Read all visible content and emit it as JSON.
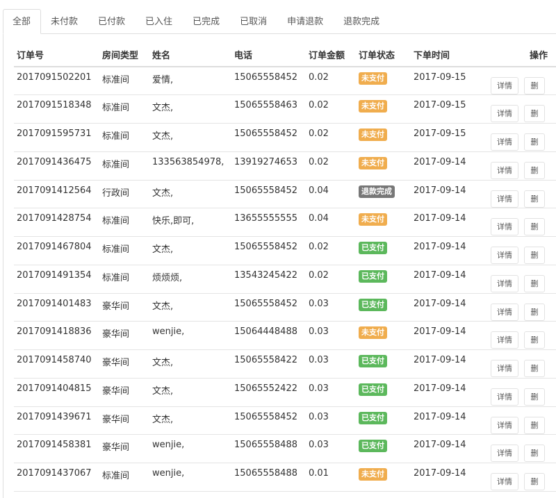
{
  "tabs": [
    "全部",
    "未付款",
    "已付款",
    "已入住",
    "已完成",
    "已取消",
    "申请退款",
    "退款完成"
  ],
  "active_tab": "全部",
  "headers": [
    "订单号",
    "房间类型",
    "姓名",
    "电话",
    "订单金额",
    "订单状态",
    "下单时间",
    "操作"
  ],
  "status_colors": {
    "未支付": "#f0ad4e",
    "已支付": "#5cb85c",
    "退款完成": "#777777"
  },
  "detail_label": "详情",
  "delete_label": "删",
  "rows": [
    {
      "id": "2017091502201",
      "room": "标准间",
      "name": "爱情,",
      "phone": "15065558452",
      "amount": "0.02",
      "status": "未支付",
      "date": "2017-09-15"
    },
    {
      "id": "2017091518348",
      "room": "标准间",
      "name": "文杰,",
      "phone": "15065558463",
      "amount": "0.02",
      "status": "未支付",
      "date": "2017-09-15"
    },
    {
      "id": "2017091595731",
      "room": "标准间",
      "name": "文杰,",
      "phone": "15065558452",
      "amount": "0.02",
      "status": "未支付",
      "date": "2017-09-15"
    },
    {
      "id": "2017091436475",
      "room": "标准间",
      "name": "133563854978,",
      "phone": "13919274653",
      "amount": "0.02",
      "status": "未支付",
      "date": "2017-09-14"
    },
    {
      "id": "2017091412564",
      "room": "行政间",
      "name": "文杰,",
      "phone": "15065558452",
      "amount": "0.04",
      "status": "退款完成",
      "date": "2017-09-14"
    },
    {
      "id": "2017091428754",
      "room": "标准间",
      "name": "快乐,即可,",
      "phone": "13655555555",
      "amount": "0.04",
      "status": "未支付",
      "date": "2017-09-14"
    },
    {
      "id": "2017091467804",
      "room": "标准间",
      "name": "文杰,",
      "phone": "15065558452",
      "amount": "0.02",
      "status": "已支付",
      "date": "2017-09-14"
    },
    {
      "id": "2017091491354",
      "room": "标准间",
      "name": "烦烦烦,",
      "phone": "13543245422",
      "amount": "0.02",
      "status": "已支付",
      "date": "2017-09-14"
    },
    {
      "id": "2017091401483",
      "room": "豪华间",
      "name": "文杰,",
      "phone": "15065558452",
      "amount": "0.03",
      "status": "已支付",
      "date": "2017-09-14"
    },
    {
      "id": "2017091418836",
      "room": "豪华间",
      "name": "wenjie,",
      "phone": "15064448488",
      "amount": "0.03",
      "status": "未支付",
      "date": "2017-09-14"
    },
    {
      "id": "2017091458740",
      "room": "豪华间",
      "name": "文杰,",
      "phone": "15065558422",
      "amount": "0.03",
      "status": "已支付",
      "date": "2017-09-14"
    },
    {
      "id": "2017091404815",
      "room": "豪华间",
      "name": "文杰,",
      "phone": "15065552422",
      "amount": "0.03",
      "status": "已支付",
      "date": "2017-09-14"
    },
    {
      "id": "2017091439671",
      "room": "豪华间",
      "name": "文杰,",
      "phone": "15065558452",
      "amount": "0.03",
      "status": "已支付",
      "date": "2017-09-14"
    },
    {
      "id": "2017091458381",
      "room": "豪华间",
      "name": "wenjie,",
      "phone": "15065558488",
      "amount": "0.03",
      "status": "已支付",
      "date": "2017-09-14"
    },
    {
      "id": "2017091437067",
      "room": "标准间",
      "name": "wenjie,",
      "phone": "15065558488",
      "amount": "0.01",
      "status": "未支付",
      "date": "2017-09-14"
    }
  ]
}
